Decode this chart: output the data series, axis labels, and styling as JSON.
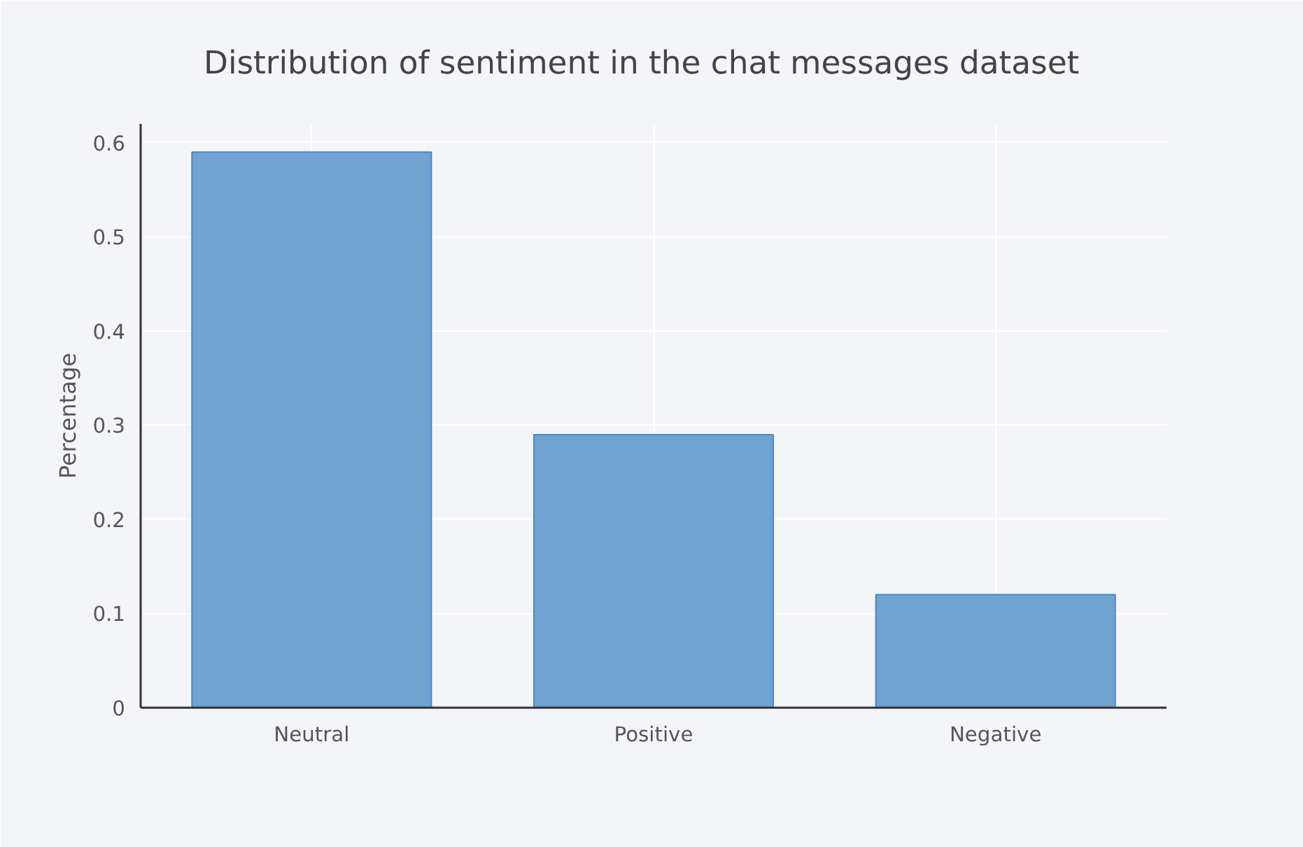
{
  "chart_data": {
    "type": "bar",
    "title": "Distribution of sentiment in the chat messages dataset",
    "ylabel": "Percentage",
    "categories": [
      "Neutral",
      "Positive",
      "Negative"
    ],
    "values": [
      0.59,
      0.29,
      0.12
    ],
    "color": "#6fa3d2",
    "ylim": [
      0,
      0.62
    ],
    "yticks": [
      {
        "value": 0,
        "label": "0"
      },
      0.1,
      0.2,
      0.3,
      0.4,
      0.5,
      0.6
    ],
    "grid": true
  }
}
